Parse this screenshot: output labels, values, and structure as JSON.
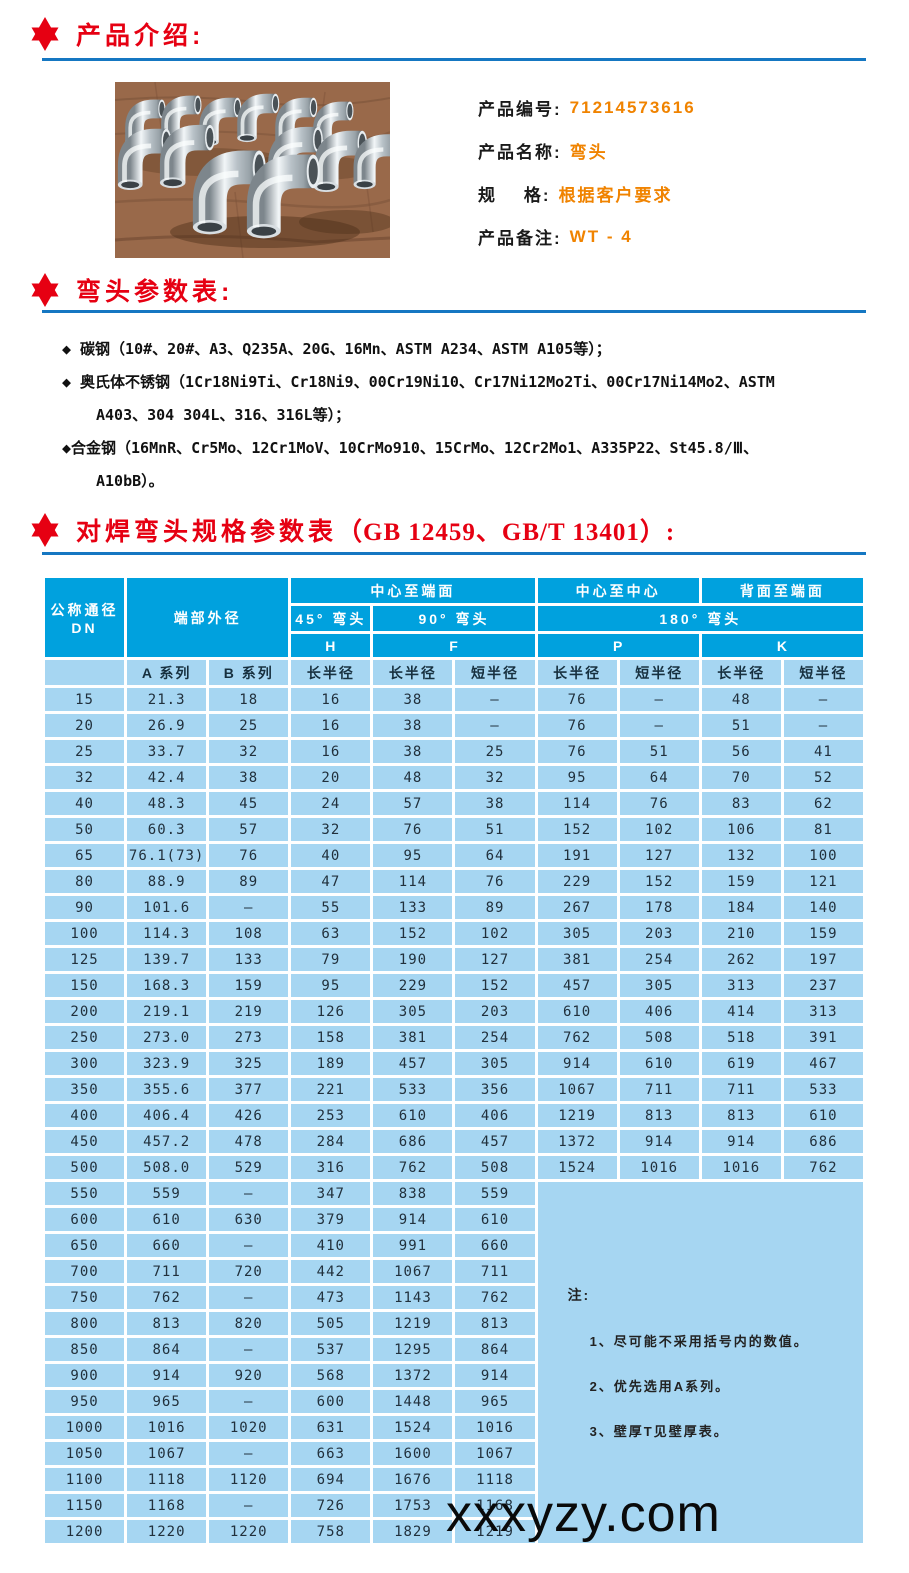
{
  "colors": {
    "title_red": "#e60012",
    "rule_blue": "#1577c2",
    "table_header_blue": "#00a1de",
    "table_cell_blue": "#a6d6f2",
    "value_orange": "#f08300",
    "watermark_black": "#0a0a0a"
  },
  "icons": {
    "section_star": "hexagram-star",
    "material_bullet": "diamond"
  },
  "sections": {
    "intro_title": "产品介绍:",
    "params_title": "弯头参数表:",
    "spec_title_main": "对焊弯头规格参数表",
    "spec_title_sub": "（GB 12459、GB/T 13401）:"
  },
  "product": {
    "fields": [
      {
        "label": "产品编号:",
        "value": "71214573616"
      },
      {
        "label": "产品名称:",
        "value": "弯头"
      },
      {
        "label": "规    格:",
        "value": "根据客户要求"
      },
      {
        "label": "产品备注:",
        "value": "WT - 4"
      }
    ]
  },
  "materials": [
    {
      "line1": "◆ 碳钢（10#、20#、A3、Q235A、20G、16Mn、ASTM A234、ASTM A105等）；",
      "line2": ""
    },
    {
      "line1": "◆ 奥氏体不锈钢（1Cr18Ni9Ti、Cr18Ni9、00Cr19Ni10、Cr17Ni12Mo2Ti、00Cr17Ni14Mo2、ASTM",
      "line2": "A403、304 304L、316、316L等）；"
    },
    {
      "line1": "◆合金钢（16MnR、Cr5Mo、12Cr1MoV、10CrMo910、15CrMo、12Cr2Mo1、A335P22、St45.8/Ⅲ、",
      "line2": "A10bB）。"
    }
  ],
  "spec_table": {
    "headers": {
      "dn_line1": "公称通径",
      "dn_line2": "DN",
      "end_od": "端部外径",
      "center_to_end": "中心至端面",
      "center_to_center": "中心至中心",
      "back_to_end": "背面至端面",
      "elbow45": "45° 弯头",
      "elbow90": "90° 弯头",
      "elbow180": "180° 弯头",
      "h": "H",
      "f": "F",
      "p": "P",
      "k": "K",
      "series_a": "A 系列",
      "series_b": "B 系列",
      "long_r": "长半径",
      "short_r": "短半径"
    },
    "rows_wide": [
      [
        "15",
        "21.3",
        "18",
        "16",
        "38",
        "—",
        "76",
        "—",
        "48",
        "—"
      ],
      [
        "20",
        "26.9",
        "25",
        "16",
        "38",
        "—",
        "76",
        "—",
        "51",
        "—"
      ],
      [
        "25",
        "33.7",
        "32",
        "16",
        "38",
        "25",
        "76",
        "51",
        "56",
        "41"
      ],
      [
        "32",
        "42.4",
        "38",
        "20",
        "48",
        "32",
        "95",
        "64",
        "70",
        "52"
      ],
      [
        "40",
        "48.3",
        "45",
        "24",
        "57",
        "38",
        "114",
        "76",
        "83",
        "62"
      ],
      [
        "50",
        "60.3",
        "57",
        "32",
        "76",
        "51",
        "152",
        "102",
        "106",
        "81"
      ],
      [
        "65",
        "76.1(73)",
        "76",
        "40",
        "95",
        "64",
        "191",
        "127",
        "132",
        "100"
      ],
      [
        "80",
        "88.9",
        "89",
        "47",
        "114",
        "76",
        "229",
        "152",
        "159",
        "121"
      ],
      [
        "90",
        "101.6",
        "—",
        "55",
        "133",
        "89",
        "267",
        "178",
        "184",
        "140"
      ],
      [
        "100",
        "114.3",
        "108",
        "63",
        "152",
        "102",
        "305",
        "203",
        "210",
        "159"
      ],
      [
        "125",
        "139.7",
        "133",
        "79",
        "190",
        "127",
        "381",
        "254",
        "262",
        "197"
      ],
      [
        "150",
        "168.3",
        "159",
        "95",
        "229",
        "152",
        "457",
        "305",
        "313",
        "237"
      ],
      [
        "200",
        "219.1",
        "219",
        "126",
        "305",
        "203",
        "610",
        "406",
        "414",
        "313"
      ],
      [
        "250",
        "273.0",
        "273",
        "158",
        "381",
        "254",
        "762",
        "508",
        "518",
        "391"
      ],
      [
        "300",
        "323.9",
        "325",
        "189",
        "457",
        "305",
        "914",
        "610",
        "619",
        "467"
      ],
      [
        "350",
        "355.6",
        "377",
        "221",
        "533",
        "356",
        "1067",
        "711",
        "711",
        "533"
      ],
      [
        "400",
        "406.4",
        "426",
        "253",
        "610",
        "406",
        "1219",
        "813",
        "813",
        "610"
      ],
      [
        "450",
        "457.2",
        "478",
        "284",
        "686",
        "457",
        "1372",
        "914",
        "914",
        "686"
      ],
      [
        "500",
        "508.0",
        "529",
        "316",
        "762",
        "508",
        "1524",
        "1016",
        "1016",
        "762"
      ]
    ],
    "rows_narrow": [
      [
        "550",
        "559",
        "—",
        "347",
        "838",
        "559"
      ],
      [
        "600",
        "610",
        "630",
        "379",
        "914",
        "610"
      ],
      [
        "650",
        "660",
        "—",
        "410",
        "991",
        "660"
      ],
      [
        "700",
        "711",
        "720",
        "442",
        "1067",
        "711"
      ],
      [
        "750",
        "762",
        "—",
        "473",
        "1143",
        "762"
      ],
      [
        "800",
        "813",
        "820",
        "505",
        "1219",
        "813"
      ],
      [
        "850",
        "864",
        "—",
        "537",
        "1295",
        "864"
      ],
      [
        "900",
        "914",
        "920",
        "568",
        "1372",
        "914"
      ],
      [
        "950",
        "965",
        "—",
        "600",
        "1448",
        "965"
      ],
      [
        "1000",
        "1016",
        "1020",
        "631",
        "1524",
        "1016"
      ],
      [
        "1050",
        "1067",
        "—",
        "663",
        "1600",
        "1067"
      ],
      [
        "1100",
        "1118",
        "1120",
        "694",
        "1676",
        "1118"
      ],
      [
        "1150",
        "1168",
        "—",
        "726",
        "1753",
        "1168"
      ],
      [
        "1200",
        "1220",
        "1220",
        "758",
        "1829",
        "1219"
      ]
    ],
    "note_title": "注:",
    "notes": [
      "1、尽可能不采用括号内的数值。",
      "2、优先选用A系列。",
      "3、壁厚T见壁厚表。"
    ]
  },
  "watermark": "xxxyzy.com"
}
